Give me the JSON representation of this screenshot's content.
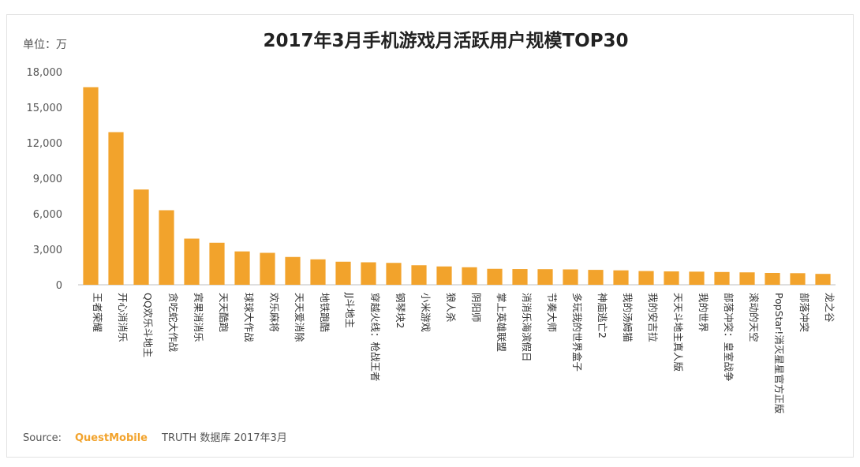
{
  "chart_data": {
    "type": "bar",
    "title": "2017年3月手机游戏月活跃用户规模TOP30",
    "unit_label": "单位：万",
    "ylim": [
      0,
      18000
    ],
    "yticks": [
      "0",
      "3,000",
      "6,000",
      "9,000",
      "12,000",
      "15,000",
      "18,000"
    ],
    "ytick_values": [
      0,
      3000,
      6000,
      9000,
      12000,
      15000,
      18000
    ],
    "categories": [
      "王者荣耀",
      "开心消消乐",
      "QQ欢乐斗地主",
      "贪吃蛇大作战",
      "宾果消消乐",
      "天天酷跑",
      "球球大作战",
      "欢乐麻将",
      "天天爱消除",
      "地铁跑酷",
      "JJ斗地主",
      "穿越火线：枪战王者",
      "钢琴块2",
      "小米游戏",
      "狼人杀",
      "阴阳师",
      "掌上英雄联盟",
      "消消乐海滨假日",
      "节奏大师",
      "多玩我的世界盒子",
      "神庙逃亡2",
      "我的汤姆猫",
      "我的安吉拉",
      "天天斗地主真人版",
      "我的世界",
      "部落冲突：皇室战争",
      "滚动的天空",
      "PopStar!消灭星星官方正版",
      "部落冲突",
      "龙之谷"
    ],
    "values": [
      16700,
      12900,
      8050,
      6300,
      3900,
      3550,
      2820,
      2700,
      2350,
      2150,
      1950,
      1900,
      1850,
      1650,
      1550,
      1480,
      1350,
      1330,
      1320,
      1300,
      1260,
      1220,
      1160,
      1130,
      1110,
      1080,
      1050,
      1000,
      980,
      920
    ],
    "color": "#f2a32c"
  },
  "source": {
    "prefix": "Source:",
    "brand": "QuestMobile",
    "suffix": "TRUTH 数据库 2017年3月"
  }
}
